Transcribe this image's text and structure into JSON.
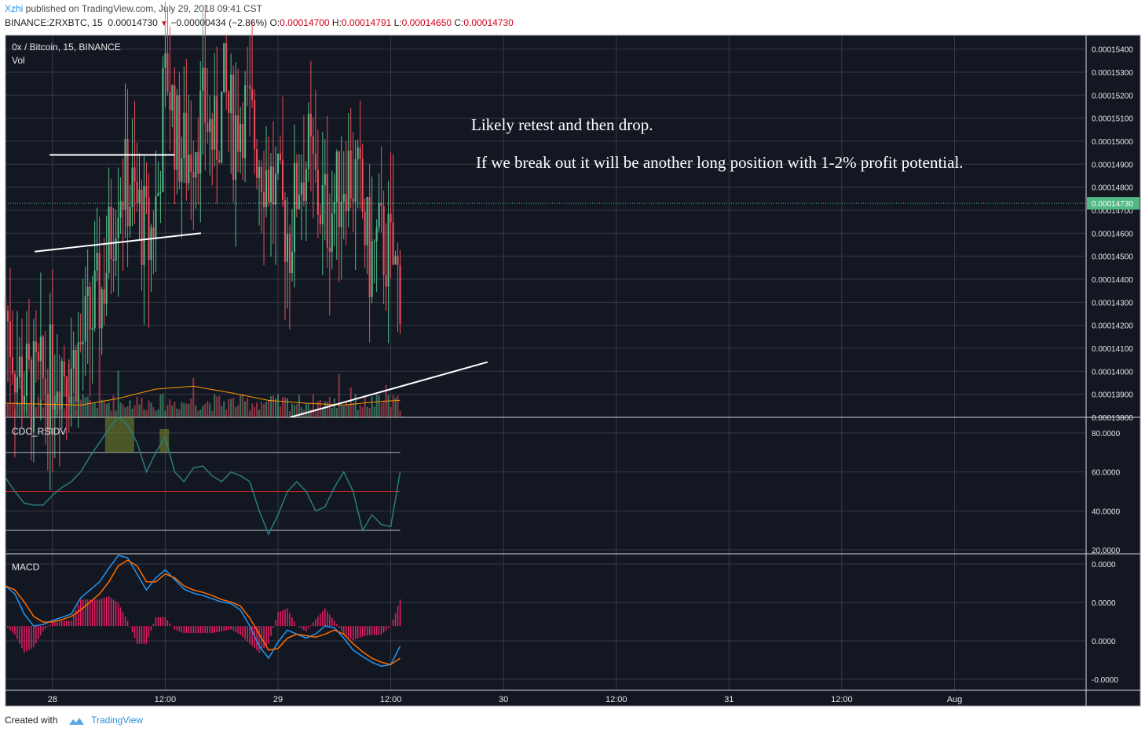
{
  "header": {
    "author": "Xzhi",
    "published_text": " published on TradingView.com, July 29, 2018 09:41 CST",
    "symbol": "BINANCE:ZRXBTC, 15",
    "last": "0.00014730",
    "change": "−0.00000434 (−2.86%)",
    "o_label": "O:",
    "o": "0.00014700",
    "h_label": "H:",
    "h": "0.00014791",
    "l_label": "L:",
    "l": "0.00014650",
    "c_label": "C:",
    "c": "0.00014730"
  },
  "footer": {
    "created_with": "Created with",
    "brand": "TradingView"
  },
  "colors": {
    "background": "#131722",
    "grid": "#363a45",
    "axis_text": "#e6e6e6",
    "up": "#53b987",
    "down": "#eb4d5c",
    "vol_ma": "#ff9800",
    "rsi_line": "#2a7d7d",
    "rsi_band_50": "#c62828",
    "macd_line": "#2196f3",
    "signal_line": "#ff6d00",
    "histogram": "#e91e63",
    "price_line": "#53b987",
    "last_price_badge": "#53b987"
  },
  "chart_data": [
    {
      "type": "candlestick",
      "title": "0x / Bitcoin, 15, BINANCE",
      "volume_label": "Vol",
      "x_ticks": [
        "28",
        "12:00",
        "29",
        "12:00",
        "30",
        "12:00",
        "31",
        "12:00",
        "Aug"
      ],
      "y_ticks": [
        "0.00015400",
        "0.00015300",
        "0.00015200",
        "0.00015100",
        "0.00015000",
        "0.00014900",
        "0.00014800",
        "0.00014700",
        "0.00014600",
        "0.00014500",
        "0.00014400",
        "0.00014300",
        "0.00014200",
        "0.00014100",
        "0.00014000",
        "0.00013900",
        "0.00013800"
      ],
      "ylim": [
        0.000138,
        0.0001546
      ],
      "last_price_label": "0.00014730",
      "last_price": 0.0001473,
      "time_unit": "hours since 27 Jul 2018 19:00",
      "xlim": [
        0,
        115
      ],
      "x_tick_positions": [
        5,
        17,
        29,
        41,
        53,
        65,
        77,
        89,
        101
      ],
      "price_anchors": [
        [
          0,
          0.0001432
        ],
        [
          1.5,
          0.00014
        ],
        [
          3,
          0.0001392
        ],
        [
          4.5,
          0.0001395
        ],
        [
          6,
          0.0001405
        ],
        [
          7.5,
          0.0001403
        ],
        [
          9,
          0.0001418
        ],
        [
          10.5,
          0.0001435
        ],
        [
          11.5,
          0.000146
        ],
        [
          12.3,
          0.0001485
        ],
        [
          13.5,
          0.0001478
        ],
        [
          14.5,
          0.0001468
        ],
        [
          15.5,
          0.0001455
        ],
        [
          16.5,
          0.0001478
        ],
        [
          17,
          0.0001515
        ],
        [
          17.5,
          0.000153
        ],
        [
          18.5,
          0.00015
        ],
        [
          19.5,
          0.0001493
        ],
        [
          20.5,
          0.0001505
        ],
        [
          21.5,
          0.0001513
        ],
        [
          22.5,
          0.0001498
        ],
        [
          23.5,
          0.000152
        ],
        [
          24.5,
          0.0001505
        ],
        [
          25.5,
          0.0001515
        ],
        [
          26.5,
          0.0001505
        ],
        [
          27.5,
          0.0001493
        ],
        [
          28.5,
          0.0001482
        ],
        [
          29.5,
          0.000147
        ],
        [
          30.5,
          0.0001458
        ],
        [
          31.5,
          0.0001487
        ],
        [
          32.5,
          0.0001493
        ],
        [
          33.5,
          0.0001475
        ],
        [
          34.5,
          0.0001468
        ],
        [
          35.5,
          0.0001476
        ],
        [
          36.5,
          0.000149
        ],
        [
          37.5,
          0.0001482
        ],
        [
          38,
          0.0001475
        ],
        [
          39,
          0.0001448
        ],
        [
          40,
          0.0001456
        ],
        [
          41,
          0.0001452
        ],
        [
          42,
          0.000144
        ]
      ],
      "volume_ma_anchors": [
        [
          0,
          0.3
        ],
        [
          8,
          0.26
        ],
        [
          12,
          0.4
        ],
        [
          16,
          0.6
        ],
        [
          20,
          0.66
        ],
        [
          24,
          0.52
        ],
        [
          28,
          0.36
        ],
        [
          32,
          0.3
        ],
        [
          36,
          0.26
        ],
        [
          40,
          0.34
        ],
        [
          42,
          0.36
        ]
      ]
    },
    {
      "type": "line",
      "title": "CDC_RSIDV",
      "y_ticks": [
        "80.0000",
        "60.0000",
        "40.0000",
        "20.0000"
      ],
      "ylim": [
        18,
        88
      ],
      "levels": [
        70,
        50,
        30
      ],
      "values": [
        [
          0,
          57
        ],
        [
          1,
          50
        ],
        [
          2,
          44
        ],
        [
          3,
          43
        ],
        [
          4,
          43
        ],
        [
          5,
          48
        ],
        [
          6,
          52
        ],
        [
          7,
          55
        ],
        [
          8,
          60
        ],
        [
          9,
          68
        ],
        [
          10,
          75
        ],
        [
          11,
          82
        ],
        [
          12,
          88
        ],
        [
          13,
          84
        ],
        [
          14,
          75
        ],
        [
          15,
          60
        ],
        [
          16,
          70
        ],
        [
          17,
          78
        ],
        [
          18,
          60
        ],
        [
          19,
          55
        ],
        [
          20,
          62
        ],
        [
          21,
          63
        ],
        [
          22,
          58
        ],
        [
          23,
          55
        ],
        [
          24,
          60
        ],
        [
          25,
          58
        ],
        [
          26,
          55
        ],
        [
          27,
          40
        ],
        [
          28,
          28
        ],
        [
          29,
          38
        ],
        [
          30,
          50
        ],
        [
          31,
          55
        ],
        [
          32,
          50
        ],
        [
          33,
          40
        ],
        [
          34,
          42
        ],
        [
          35,
          52
        ],
        [
          36,
          60
        ],
        [
          37,
          50
        ],
        [
          38,
          30
        ],
        [
          39,
          38
        ],
        [
          40,
          33
        ],
        [
          41,
          32
        ],
        [
          42,
          60
        ]
      ]
    },
    {
      "type": "line",
      "title": "MACD",
      "y_ticks": [
        "0.0000",
        "0.0000",
        "0.0000",
        "-0.0000"
      ],
      "ylim": [
        -0.8,
        0.9
      ],
      "macd": [
        [
          0,
          0.5
        ],
        [
          1,
          0.4
        ],
        [
          2,
          0.15
        ],
        [
          3,
          0.0
        ],
        [
          4,
          0.02
        ],
        [
          5,
          0.07
        ],
        [
          6,
          0.11
        ],
        [
          7,
          0.15
        ],
        [
          8,
          0.35
        ],
        [
          9,
          0.45
        ],
        [
          10,
          0.55
        ],
        [
          11,
          0.72
        ],
        [
          12,
          0.88
        ],
        [
          13,
          0.85
        ],
        [
          14,
          0.65
        ],
        [
          15,
          0.45
        ],
        [
          16,
          0.6
        ],
        [
          17,
          0.7
        ],
        [
          18,
          0.58
        ],
        [
          19,
          0.46
        ],
        [
          20,
          0.41
        ],
        [
          21,
          0.38
        ],
        [
          22,
          0.34
        ],
        [
          23,
          0.3
        ],
        [
          24,
          0.28
        ],
        [
          25,
          0.2
        ],
        [
          26,
          0.0
        ],
        [
          27,
          -0.25
        ],
        [
          28,
          -0.4
        ],
        [
          29,
          -0.2
        ],
        [
          30,
          -0.05
        ],
        [
          31,
          -0.1
        ],
        [
          32,
          -0.15
        ],
        [
          33,
          -0.1
        ],
        [
          34,
          0.0
        ],
        [
          35,
          -0.02
        ],
        [
          36,
          -0.15
        ],
        [
          37,
          -0.3
        ],
        [
          38,
          -0.38
        ],
        [
          39,
          -0.45
        ],
        [
          40,
          -0.5
        ],
        [
          41,
          -0.48
        ],
        [
          42,
          -0.25
        ]
      ],
      "signal": [
        [
          0,
          0.5
        ],
        [
          1,
          0.45
        ],
        [
          2,
          0.3
        ],
        [
          3,
          0.12
        ],
        [
          4,
          0.05
        ],
        [
          5,
          0.05
        ],
        [
          6,
          0.08
        ],
        [
          7,
          0.12
        ],
        [
          8,
          0.2
        ],
        [
          9,
          0.3
        ],
        [
          10,
          0.4
        ],
        [
          11,
          0.55
        ],
        [
          12,
          0.75
        ],
        [
          13,
          0.82
        ],
        [
          14,
          0.75
        ],
        [
          15,
          0.55
        ],
        [
          16,
          0.55
        ],
        [
          17,
          0.65
        ],
        [
          18,
          0.6
        ],
        [
          19,
          0.5
        ],
        [
          20,
          0.45
        ],
        [
          21,
          0.42
        ],
        [
          22,
          0.38
        ],
        [
          23,
          0.33
        ],
        [
          24,
          0.3
        ],
        [
          25,
          0.25
        ],
        [
          26,
          0.1
        ],
        [
          27,
          -0.1
        ],
        [
          28,
          -0.3
        ],
        [
          29,
          -0.28
        ],
        [
          30,
          -0.15
        ],
        [
          31,
          -0.1
        ],
        [
          32,
          -0.12
        ],
        [
          33,
          -0.14
        ],
        [
          34,
          -0.1
        ],
        [
          35,
          -0.05
        ],
        [
          36,
          -0.1
        ],
        [
          37,
          -0.22
        ],
        [
          38,
          -0.32
        ],
        [
          39,
          -0.4
        ],
        [
          40,
          -0.45
        ],
        [
          41,
          -0.48
        ],
        [
          42,
          -0.4
        ]
      ]
    }
  ],
  "annotations": {
    "text1": "Likely retest and then drop.",
    "text2": "If we break out it will be another long position with 1-2% profit potential.",
    "neckline_top": [
      [
        4.7,
        0.0001494
      ],
      [
        18,
        0.0001494
      ]
    ],
    "neckline_bottom": [
      [
        3.1,
        0.0001452
      ],
      [
        20.8,
        0.000146
      ]
    ],
    "trend_line": [
      [
        30.3,
        0.000138
      ],
      [
        51.3,
        0.0001404
      ]
    ]
  }
}
